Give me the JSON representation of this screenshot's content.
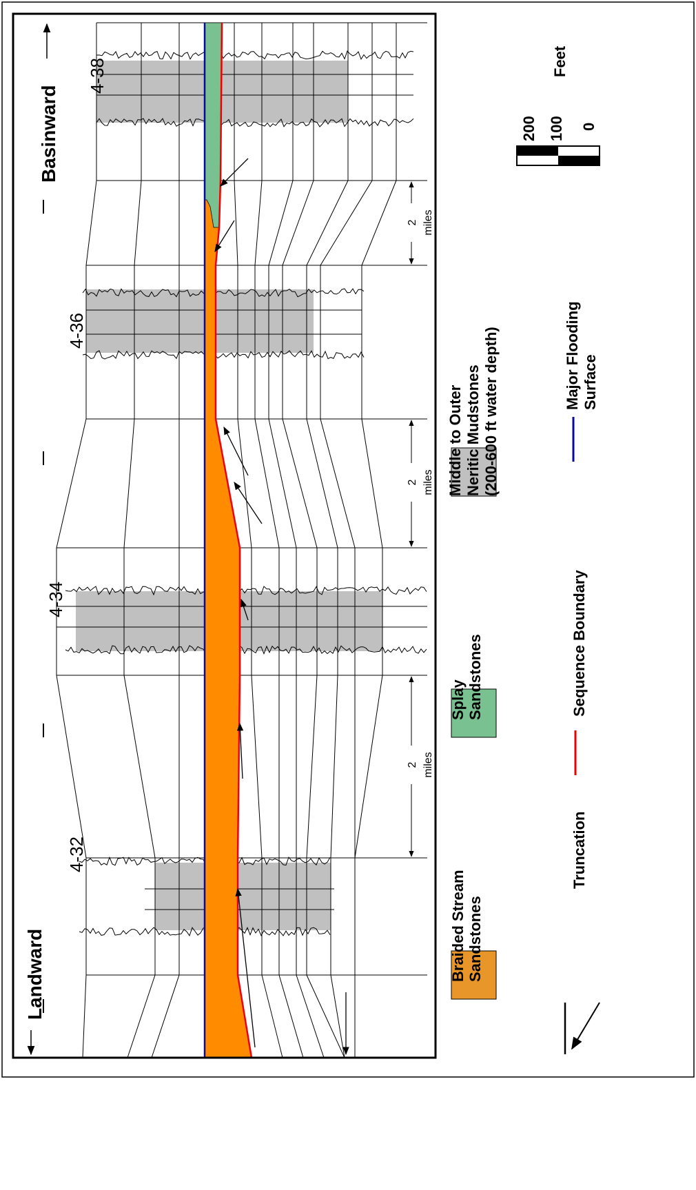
{
  "header": {
    "left": "Landward",
    "right": "Basinward"
  },
  "wells": [
    "4-32",
    "4-34",
    "4-36",
    "4-38"
  ],
  "distances": [
    {
      "value": "2",
      "unit": "miles"
    },
    {
      "value": "2",
      "unit": "miles"
    },
    {
      "value": "2",
      "unit": "miles"
    }
  ],
  "legend": {
    "braided": [
      "Braided Stream",
      "Sandstones"
    ],
    "splay": [
      "Splay",
      "Sandstones"
    ],
    "mudstones": [
      "Middle to Outer",
      "Neritic Mudstones",
      "(200-600 ft water depth)"
    ],
    "truncation": "Truncation",
    "sequence_boundary": "Sequence Boundary",
    "flooding": [
      "Major Flooding",
      "Surface"
    ]
  },
  "scale": {
    "title": "Feet",
    "ticks": [
      "200",
      "100",
      "0"
    ]
  }
}
